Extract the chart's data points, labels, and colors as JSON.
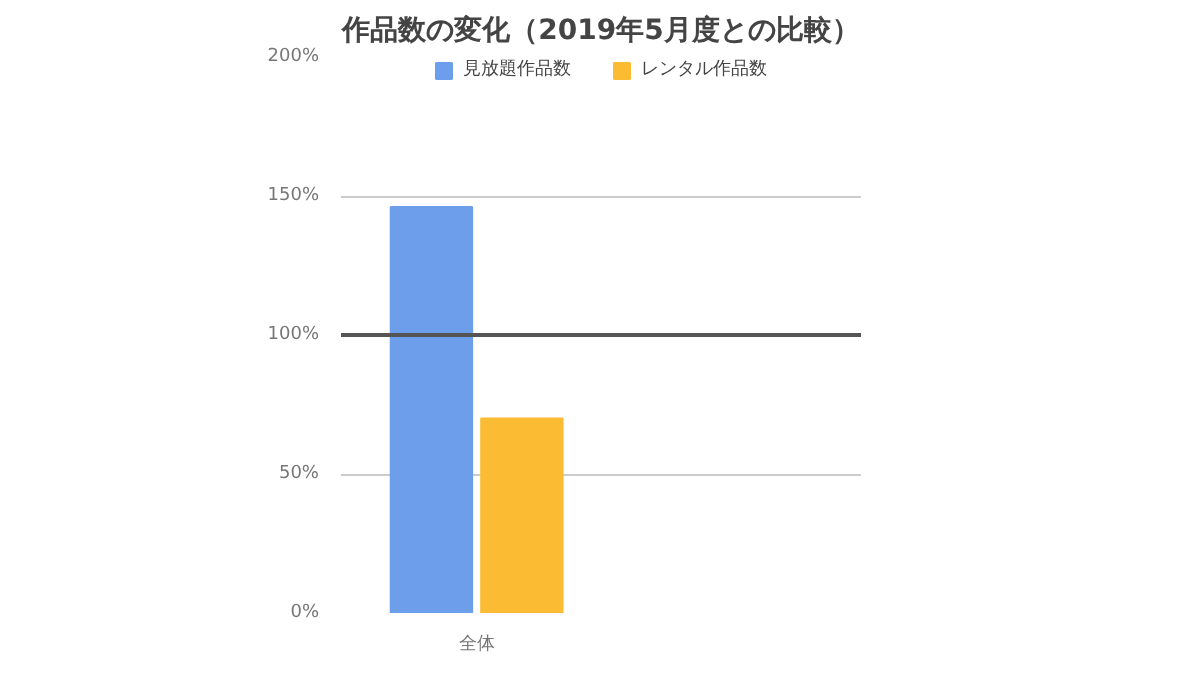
{
  "chart_data": {
    "type": "bar",
    "title": "作品数の変化（2019年5月度との比較）",
    "categories": [
      "全体"
    ],
    "series": [
      {
        "name": "見放題作品数",
        "color": "#6d9eeb",
        "values": [
          146
        ]
      },
      {
        "name": "レンタル作品数",
        "color": "#fbbc34",
        "values": [
          70
        ]
      }
    ],
    "ylim": [
      0,
      200
    ],
    "yticks": [
      {
        "value": 0,
        "label": "0%"
      },
      {
        "value": 50,
        "label": "50%"
      },
      {
        "value": 100,
        "label": "100%"
      },
      {
        "value": 150,
        "label": "150%"
      },
      {
        "value": 200,
        "label": "200%"
      }
    ],
    "ref_lines": [
      {
        "axis": "y",
        "value": 100,
        "color": "#555555",
        "line_style": "solid"
      }
    ],
    "grid": "y",
    "legend": "top"
  }
}
